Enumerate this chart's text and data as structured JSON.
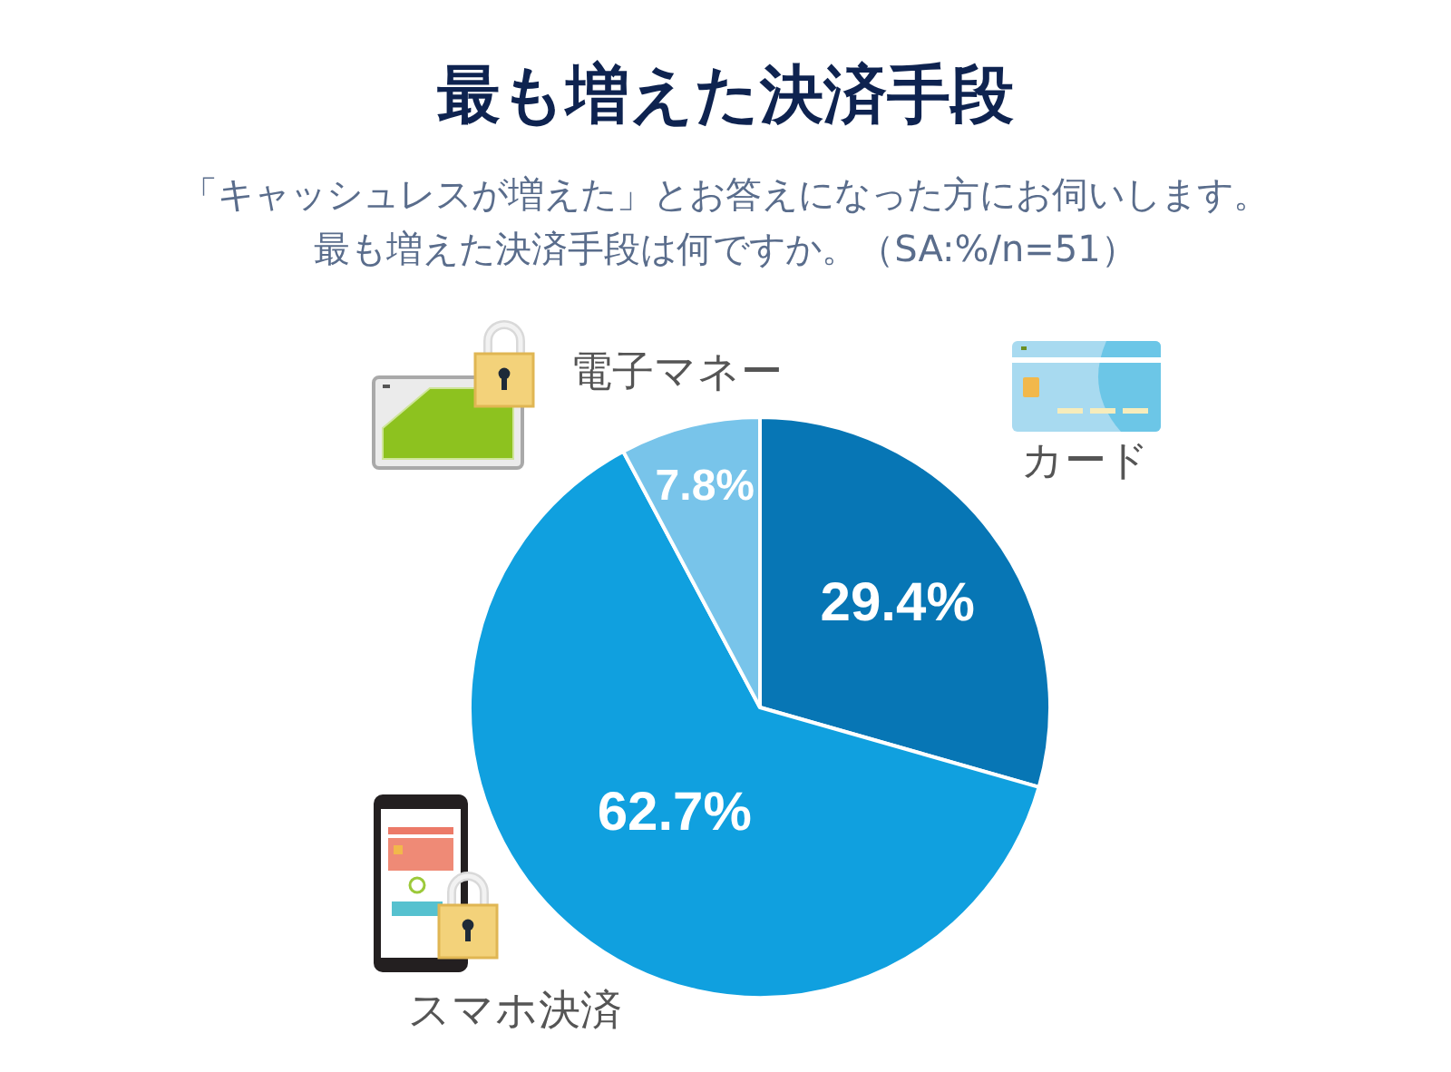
{
  "chart_data": {
    "type": "pie",
    "title": "最も増えた決済手段",
    "subtitle": "「キャッシュレスが増えた」とお答えになった方にお伺いします。最も増えた決済手段は何ですか。（SA:%/n=51）",
    "categories": [
      "カード",
      "スマホ決済",
      "電子マネー"
    ],
    "values": [
      29.4,
      62.7,
      7.8
    ],
    "colors": [
      "#0776b5",
      "#10a0df",
      "#78c4ea"
    ],
    "value_labels": [
      "29.4%",
      "62.7%",
      "7.8%"
    ]
  }
}
